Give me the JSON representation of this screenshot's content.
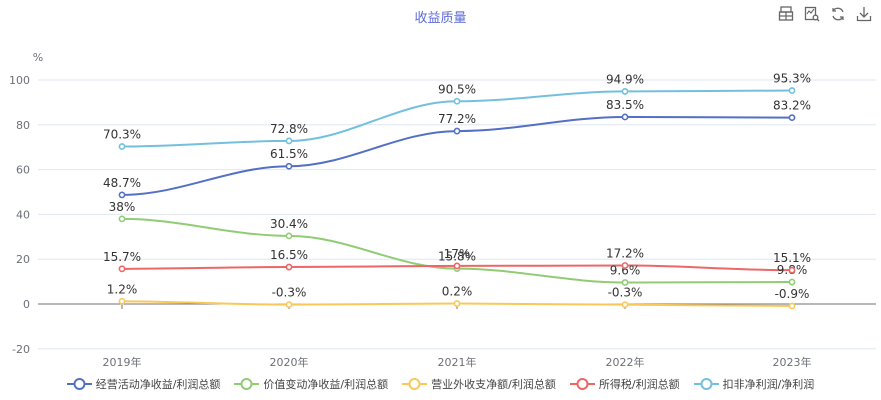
{
  "header": {
    "title": "收益质量",
    "tools": [
      {
        "name": "data-view-icon"
      },
      {
        "name": "chart-zoom-icon"
      },
      {
        "name": "restore-icon"
      },
      {
        "name": "download-icon"
      }
    ]
  },
  "chart_data": {
    "type": "line",
    "title": "收益质量",
    "ylabel": "%",
    "xlabel": "",
    "ylim": [
      -20,
      100
    ],
    "yticks": [
      -20,
      0,
      20,
      40,
      60,
      80,
      100
    ],
    "grid": true,
    "legend_position": "bottom",
    "categories": [
      "2019年",
      "2020年",
      "2021年",
      "2022年",
      "2023年"
    ],
    "series": [
      {
        "name": "经营活动净收益/利润总额",
        "color": "#5470c6",
        "values": [
          48.7,
          61.5,
          77.2,
          83.5,
          83.2
        ],
        "labels": [
          "48.7%",
          "61.5%",
          "77.2%",
          "83.5%",
          "83.2%"
        ]
      },
      {
        "name": "价值变动净收益/利润总额",
        "color": "#91cc75",
        "values": [
          38,
          30.4,
          15.8,
          9.6,
          9.8
        ],
        "labels": [
          "38%",
          "30.4%",
          "15.8%",
          "9.6%",
          "9.8%"
        ]
      },
      {
        "name": "营业外收支净额/利润总额",
        "color": "#fac858",
        "values": [
          1.2,
          -0.3,
          0.2,
          -0.3,
          -0.9
        ],
        "labels": [
          "1.2%",
          "-0.3%",
          "0.2%",
          "-0.3%",
          "-0.9%"
        ]
      },
      {
        "name": "所得税/利润总额",
        "color": "#ee6666",
        "values": [
          15.7,
          16.5,
          17,
          17.2,
          15.1
        ],
        "labels": [
          "15.7%",
          "16.5%",
          "17%",
          "17.2%",
          "15.1%"
        ]
      },
      {
        "name": "扣非净利润/净利润",
        "color": "#73c0de",
        "values": [
          70.3,
          72.8,
          90.5,
          94.9,
          95.3
        ],
        "labels": [
          "70.3%",
          "72.8%",
          "90.5%",
          "94.9%",
          "95.3%"
        ]
      }
    ]
  }
}
